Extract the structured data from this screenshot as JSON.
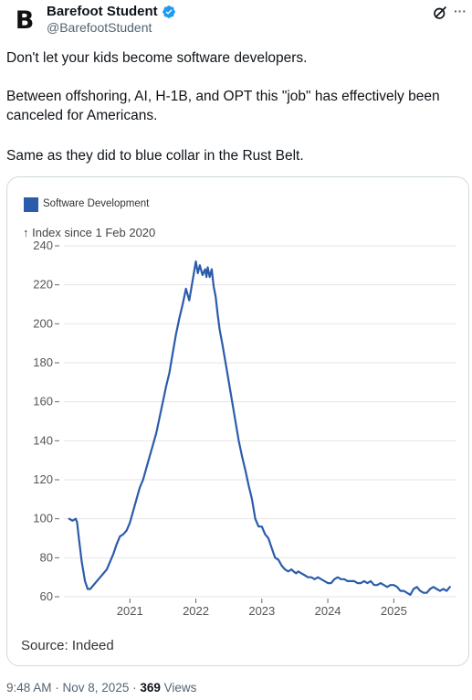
{
  "author": {
    "avatar_letter": "B",
    "name": "Barefoot Student",
    "handle": "@BarefootStudent",
    "verified_icon": "verified-badge-icon"
  },
  "actions": {
    "grok_icon": "grok-icon",
    "more_label": "···"
  },
  "tweet": {
    "p1": "Don't let your kids become software developers.",
    "p2": "Between offshoring, AI, H-1B, and OPT this \"job\" has effectively been canceled for Americans.",
    "p3": "Same as they did to blue collar in the Rust Belt."
  },
  "chart_data": {
    "type": "line",
    "title": "",
    "legend": [
      "Software Development"
    ],
    "ylabel": "↑ Index since 1 Feb 2020",
    "xlabel": "",
    "source": "Source: Indeed",
    "ylim": [
      60,
      240
    ],
    "xlim": [
      2020.0,
      2025.95
    ],
    "yticks": [
      60,
      80,
      100,
      120,
      140,
      160,
      180,
      200,
      220,
      240
    ],
    "xticks": [
      2021,
      2022,
      2023,
      2024,
      2025
    ],
    "grid": true,
    "colors": {
      "series": "#2b5cab",
      "grid": "#e6e6e6",
      "axis_text": "#555555"
    },
    "series": [
      {
        "name": "Software Development",
        "x": [
          2020.08,
          2020.13,
          2020.18,
          2020.2,
          2020.22,
          2020.27,
          2020.32,
          2020.36,
          2020.4,
          2020.45,
          2020.5,
          2020.55,
          2020.6,
          2020.65,
          2020.7,
          2020.75,
          2020.8,
          2020.85,
          2020.9,
          2020.95,
          2021.0,
          2021.05,
          2021.1,
          2021.15,
          2021.2,
          2021.25,
          2021.3,
          2021.35,
          2021.4,
          2021.45,
          2021.5,
          2021.55,
          2021.6,
          2021.65,
          2021.7,
          2021.72,
          2021.75,
          2021.8,
          2021.85,
          2021.9,
          2021.95,
          2021.98,
          2022.0,
          2022.03,
          2022.06,
          2022.1,
          2022.14,
          2022.16,
          2022.18,
          2022.21,
          2022.24,
          2022.27,
          2022.3,
          2022.33,
          2022.36,
          2022.4,
          2022.45,
          2022.5,
          2022.55,
          2022.6,
          2022.65,
          2022.7,
          2022.75,
          2022.8,
          2022.85,
          2022.9,
          2022.95,
          2023.0,
          2023.05,
          2023.1,
          2023.15,
          2023.2,
          2023.25,
          2023.3,
          2023.35,
          2023.4,
          2023.45,
          2023.48,
          2023.52,
          2023.55,
          2023.6,
          2023.65,
          2023.7,
          2023.75,
          2023.8,
          2023.85,
          2023.9,
          2023.95,
          2024.0,
          2024.05,
          2024.1,
          2024.15,
          2024.2,
          2024.25,
          2024.3,
          2024.35,
          2024.4,
          2024.45,
          2024.5,
          2024.55,
          2024.6,
          2024.65,
          2024.7,
          2024.75,
          2024.8,
          2024.85,
          2024.9,
          2024.95,
          2025.0,
          2025.05,
          2025.1,
          2025.15,
          2025.2,
          2025.25,
          2025.3,
          2025.35,
          2025.4,
          2025.45,
          2025.5,
          2025.55,
          2025.6,
          2025.65,
          2025.7,
          2025.75,
          2025.8,
          2025.85
        ],
        "values": [
          100,
          99,
          100,
          98,
          92,
          78,
          68,
          64,
          64,
          66,
          68,
          70,
          72,
          74,
          78,
          82,
          87,
          91,
          92,
          94,
          98,
          104,
          110,
          116,
          120,
          126,
          132,
          138,
          144,
          152,
          160,
          168,
          175,
          185,
          195,
          198,
          203,
          210,
          218,
          212,
          222,
          228,
          232,
          226,
          230,
          225,
          228,
          224,
          229,
          224,
          228,
          219,
          214,
          205,
          197,
          190,
          180,
          170,
          160,
          150,
          140,
          132,
          125,
          117,
          110,
          100,
          96,
          96,
          92,
          90,
          85,
          80,
          79,
          76,
          74,
          73,
          74,
          73,
          72,
          73,
          72,
          71,
          70,
          70,
          69,
          70,
          69,
          68,
          67,
          67,
          69,
          70,
          69,
          69,
          68,
          68,
          68,
          67,
          67,
          68,
          67,
          68,
          66,
          66,
          67,
          66,
          65,
          66,
          66,
          65,
          63,
          63,
          62,
          61,
          64,
          65,
          63,
          62,
          62,
          64,
          65,
          64,
          63,
          64,
          63,
          65
        ]
      }
    ]
  },
  "footer": {
    "time": "9:48 AM",
    "sep1": " · ",
    "date": "Nov 8, 2025",
    "sep2": " · ",
    "views_count": "369",
    "views_label": " Views"
  }
}
